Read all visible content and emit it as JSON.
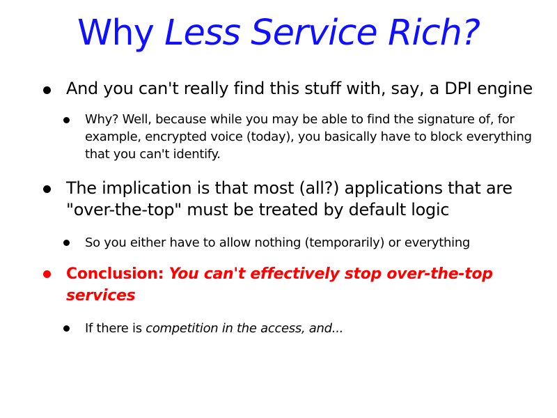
{
  "slide": {
    "title_plain": "Why ",
    "title_italic": "Less Service Rich?",
    "bullets": [
      {
        "text": "And you can't really find this stuff with, say, a DPI engine",
        "sub": [
          {
            "line1": "Why? Well, because while you may be able to find the signature of, for",
            "line2": "example, encrypted voice (today), you basically have to block everything",
            "line3": "that you can't identify."
          }
        ]
      },
      {
        "line1": "The implication is that most (all?) applications that are",
        "line2": "\"over-the-top\" must be treated by default logic",
        "sub": [
          {
            "text": "So you either have to allow nothing (temporarily) or everything"
          }
        ]
      },
      {
        "lead": "Conclusion:  ",
        "line1_italic": "You can't effectively stop over-the-top",
        "line2_italic": "services",
        "sub": [
          {
            "plain": "If there is ",
            "italic": "competition in the access, and..."
          }
        ]
      }
    ],
    "colors": {
      "title": "#1010ff",
      "conclusion": "#ff0000",
      "text": "#000000"
    }
  }
}
